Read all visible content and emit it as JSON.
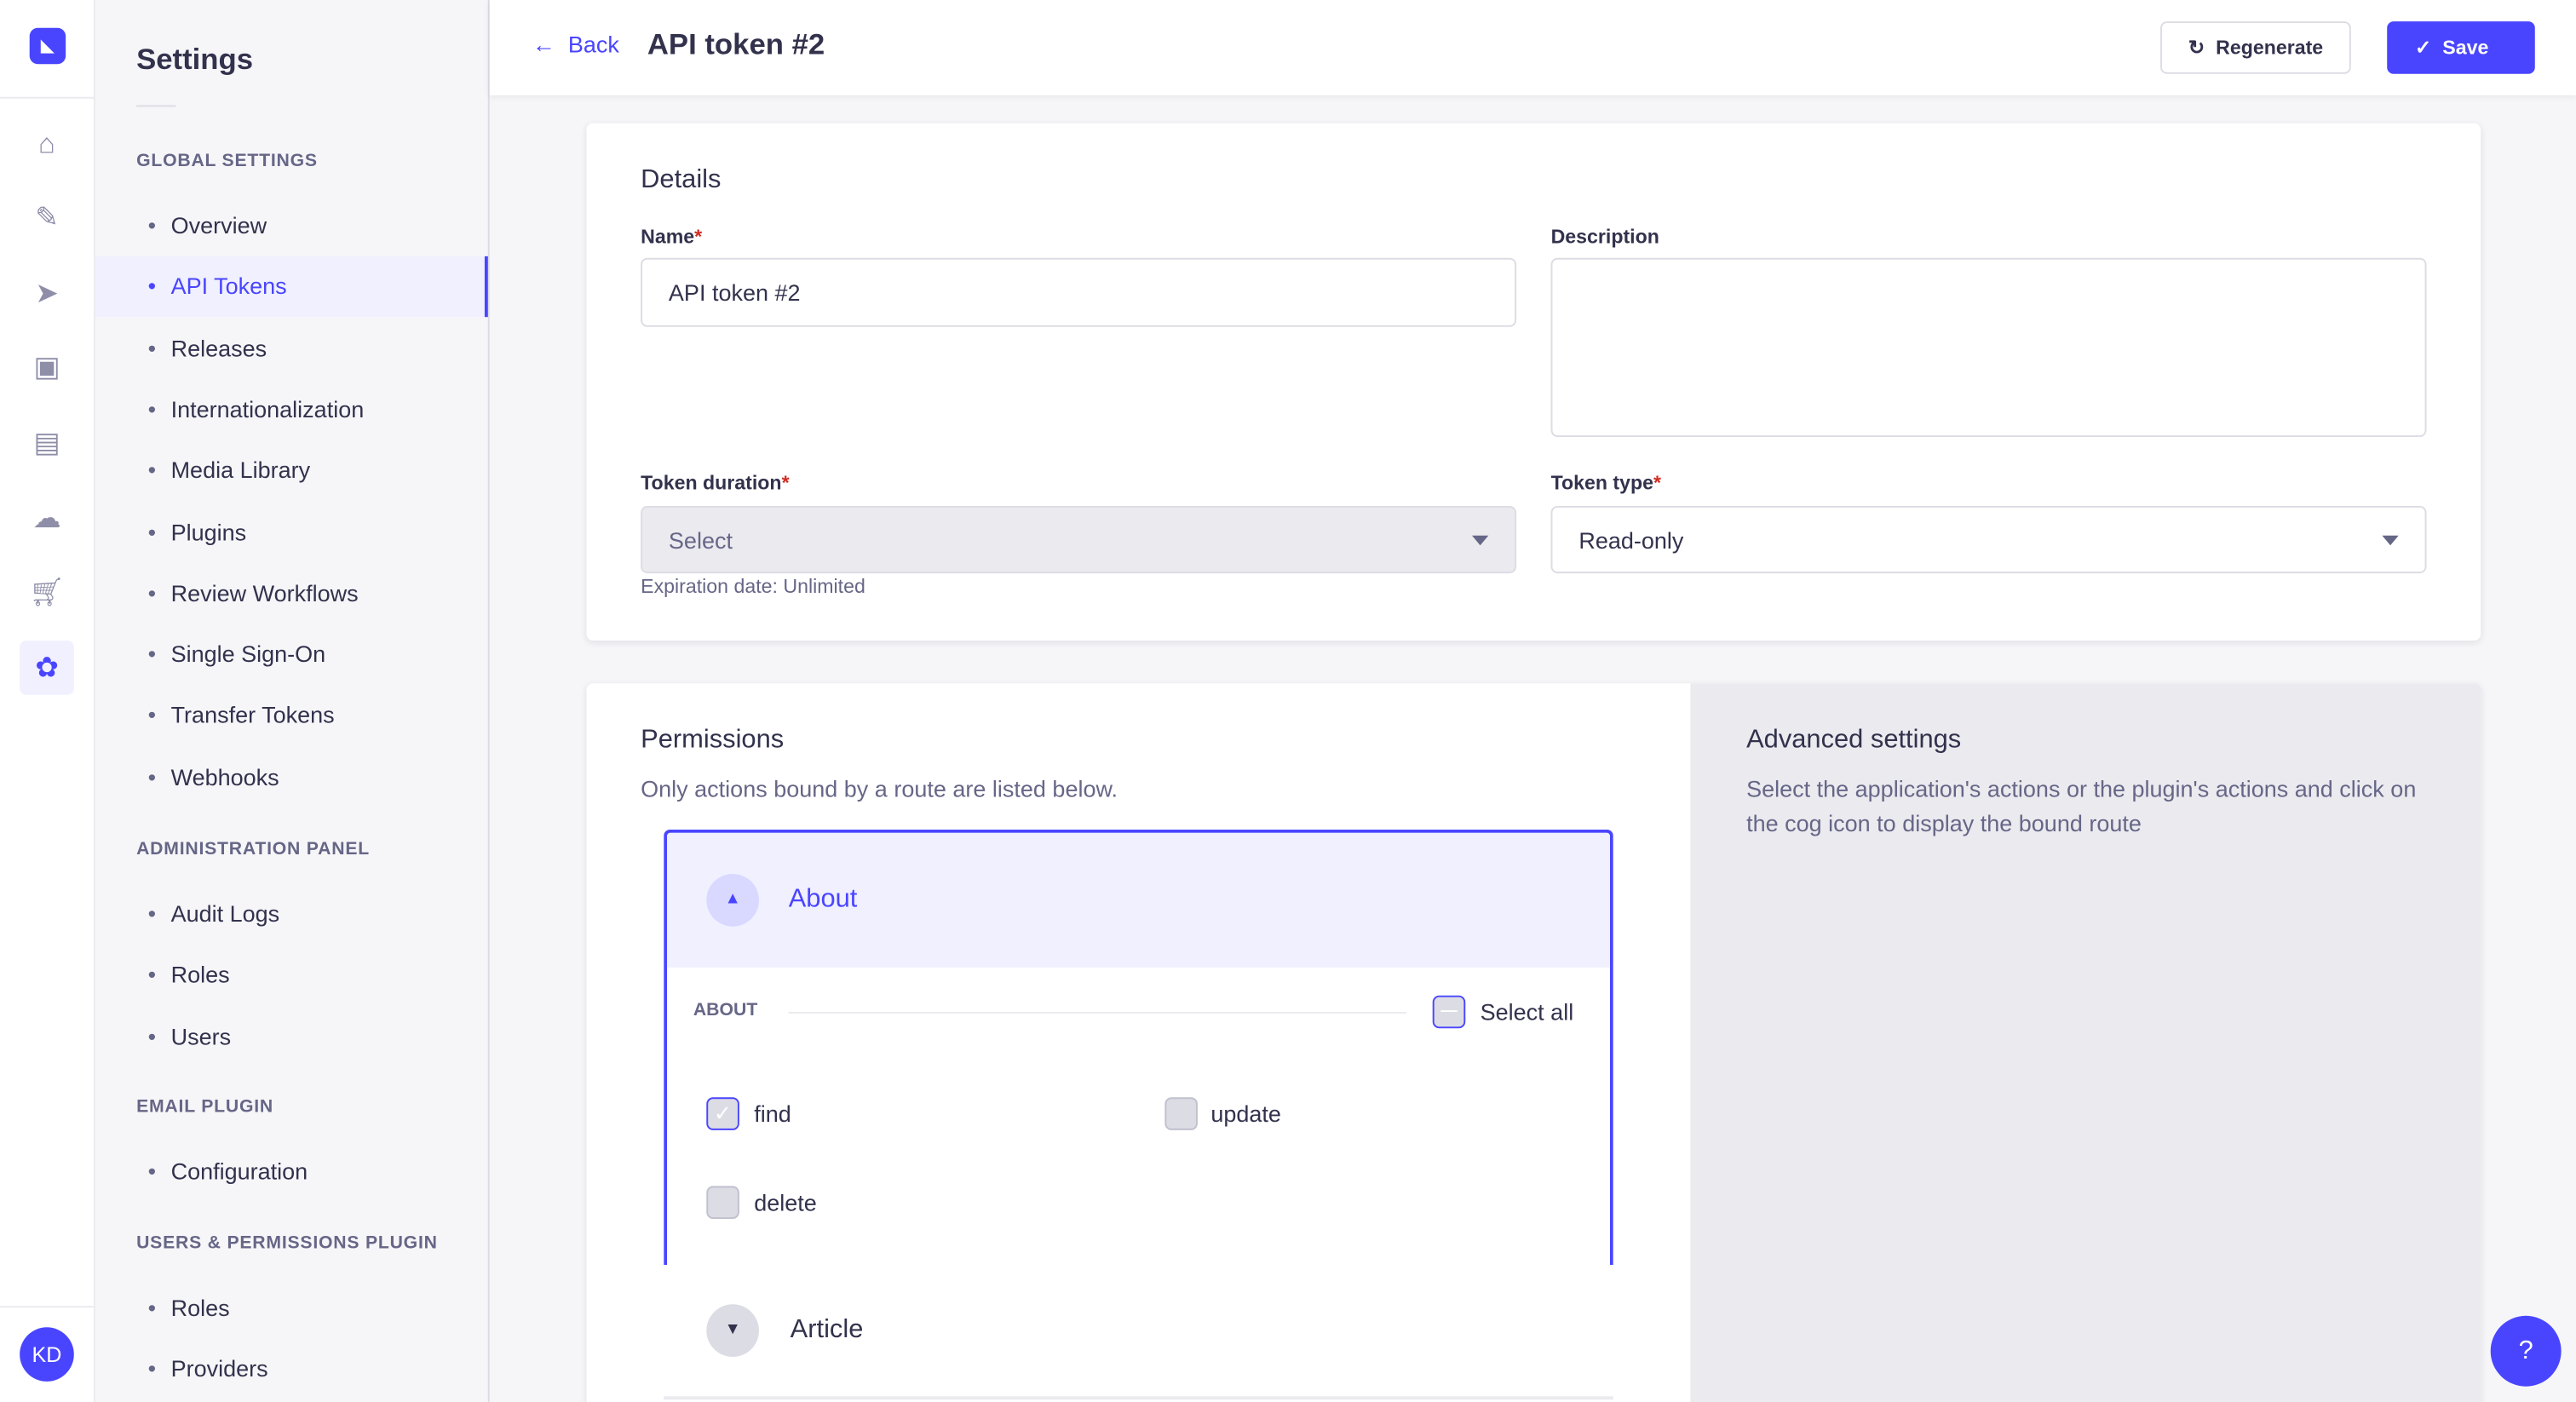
{
  "rail": {
    "logo": "strapi-logo",
    "icons": [
      "home-icon",
      "content-manager-icon",
      "send-icon",
      "media-icon",
      "layout-icon",
      "cloud-icon",
      "cart-icon",
      "settings-icon"
    ],
    "avatar": "KD"
  },
  "subnav": {
    "title": "Settings",
    "sections": [
      {
        "title": "GLOBAL SETTINGS",
        "items": [
          "Overview",
          "API Tokens",
          "Releases",
          "Internationalization",
          "Media Library",
          "Plugins",
          "Review Workflows",
          "Single Sign-On",
          "Transfer Tokens",
          "Webhooks"
        ]
      },
      {
        "title": "ADMINISTRATION PANEL",
        "items": [
          "Audit Logs",
          "Roles",
          "Users"
        ]
      },
      {
        "title": "EMAIL PLUGIN",
        "items": [
          "Configuration"
        ]
      },
      {
        "title": "USERS & PERMISSIONS PLUGIN",
        "items": [
          "Roles",
          "Providers"
        ]
      }
    ],
    "active": "API Tokens"
  },
  "header": {
    "back": "Back",
    "title": "API token #2",
    "regenerate": "Regenerate",
    "save": "Save"
  },
  "details": {
    "title": "Details",
    "name_label": "Name",
    "name_value": "API token #2",
    "description_label": "Description",
    "description_value": "",
    "duration_label": "Token duration",
    "duration_value": "Select",
    "expiration": "Expiration date: Unlimited",
    "type_label": "Token type",
    "type_value": "Read-only"
  },
  "permissions": {
    "title": "Permissions",
    "subtitle": "Only actions bound by a route are listed below.",
    "groups": [
      {
        "name": "About",
        "expanded": true,
        "section": "ABOUT",
        "select_all": "Select all",
        "actions": [
          {
            "label": "find",
            "checked": true
          },
          {
            "label": "update",
            "checked": false
          },
          {
            "label": "delete",
            "checked": false
          }
        ]
      },
      {
        "name": "Article",
        "expanded": false
      }
    ]
  },
  "advanced": {
    "title": "Advanced settings",
    "text": "Select the application's actions or the plugin's actions and click on the cog icon to display the bound route"
  },
  "colors": {
    "primary": "#4945ff",
    "required": "#d02b20"
  }
}
